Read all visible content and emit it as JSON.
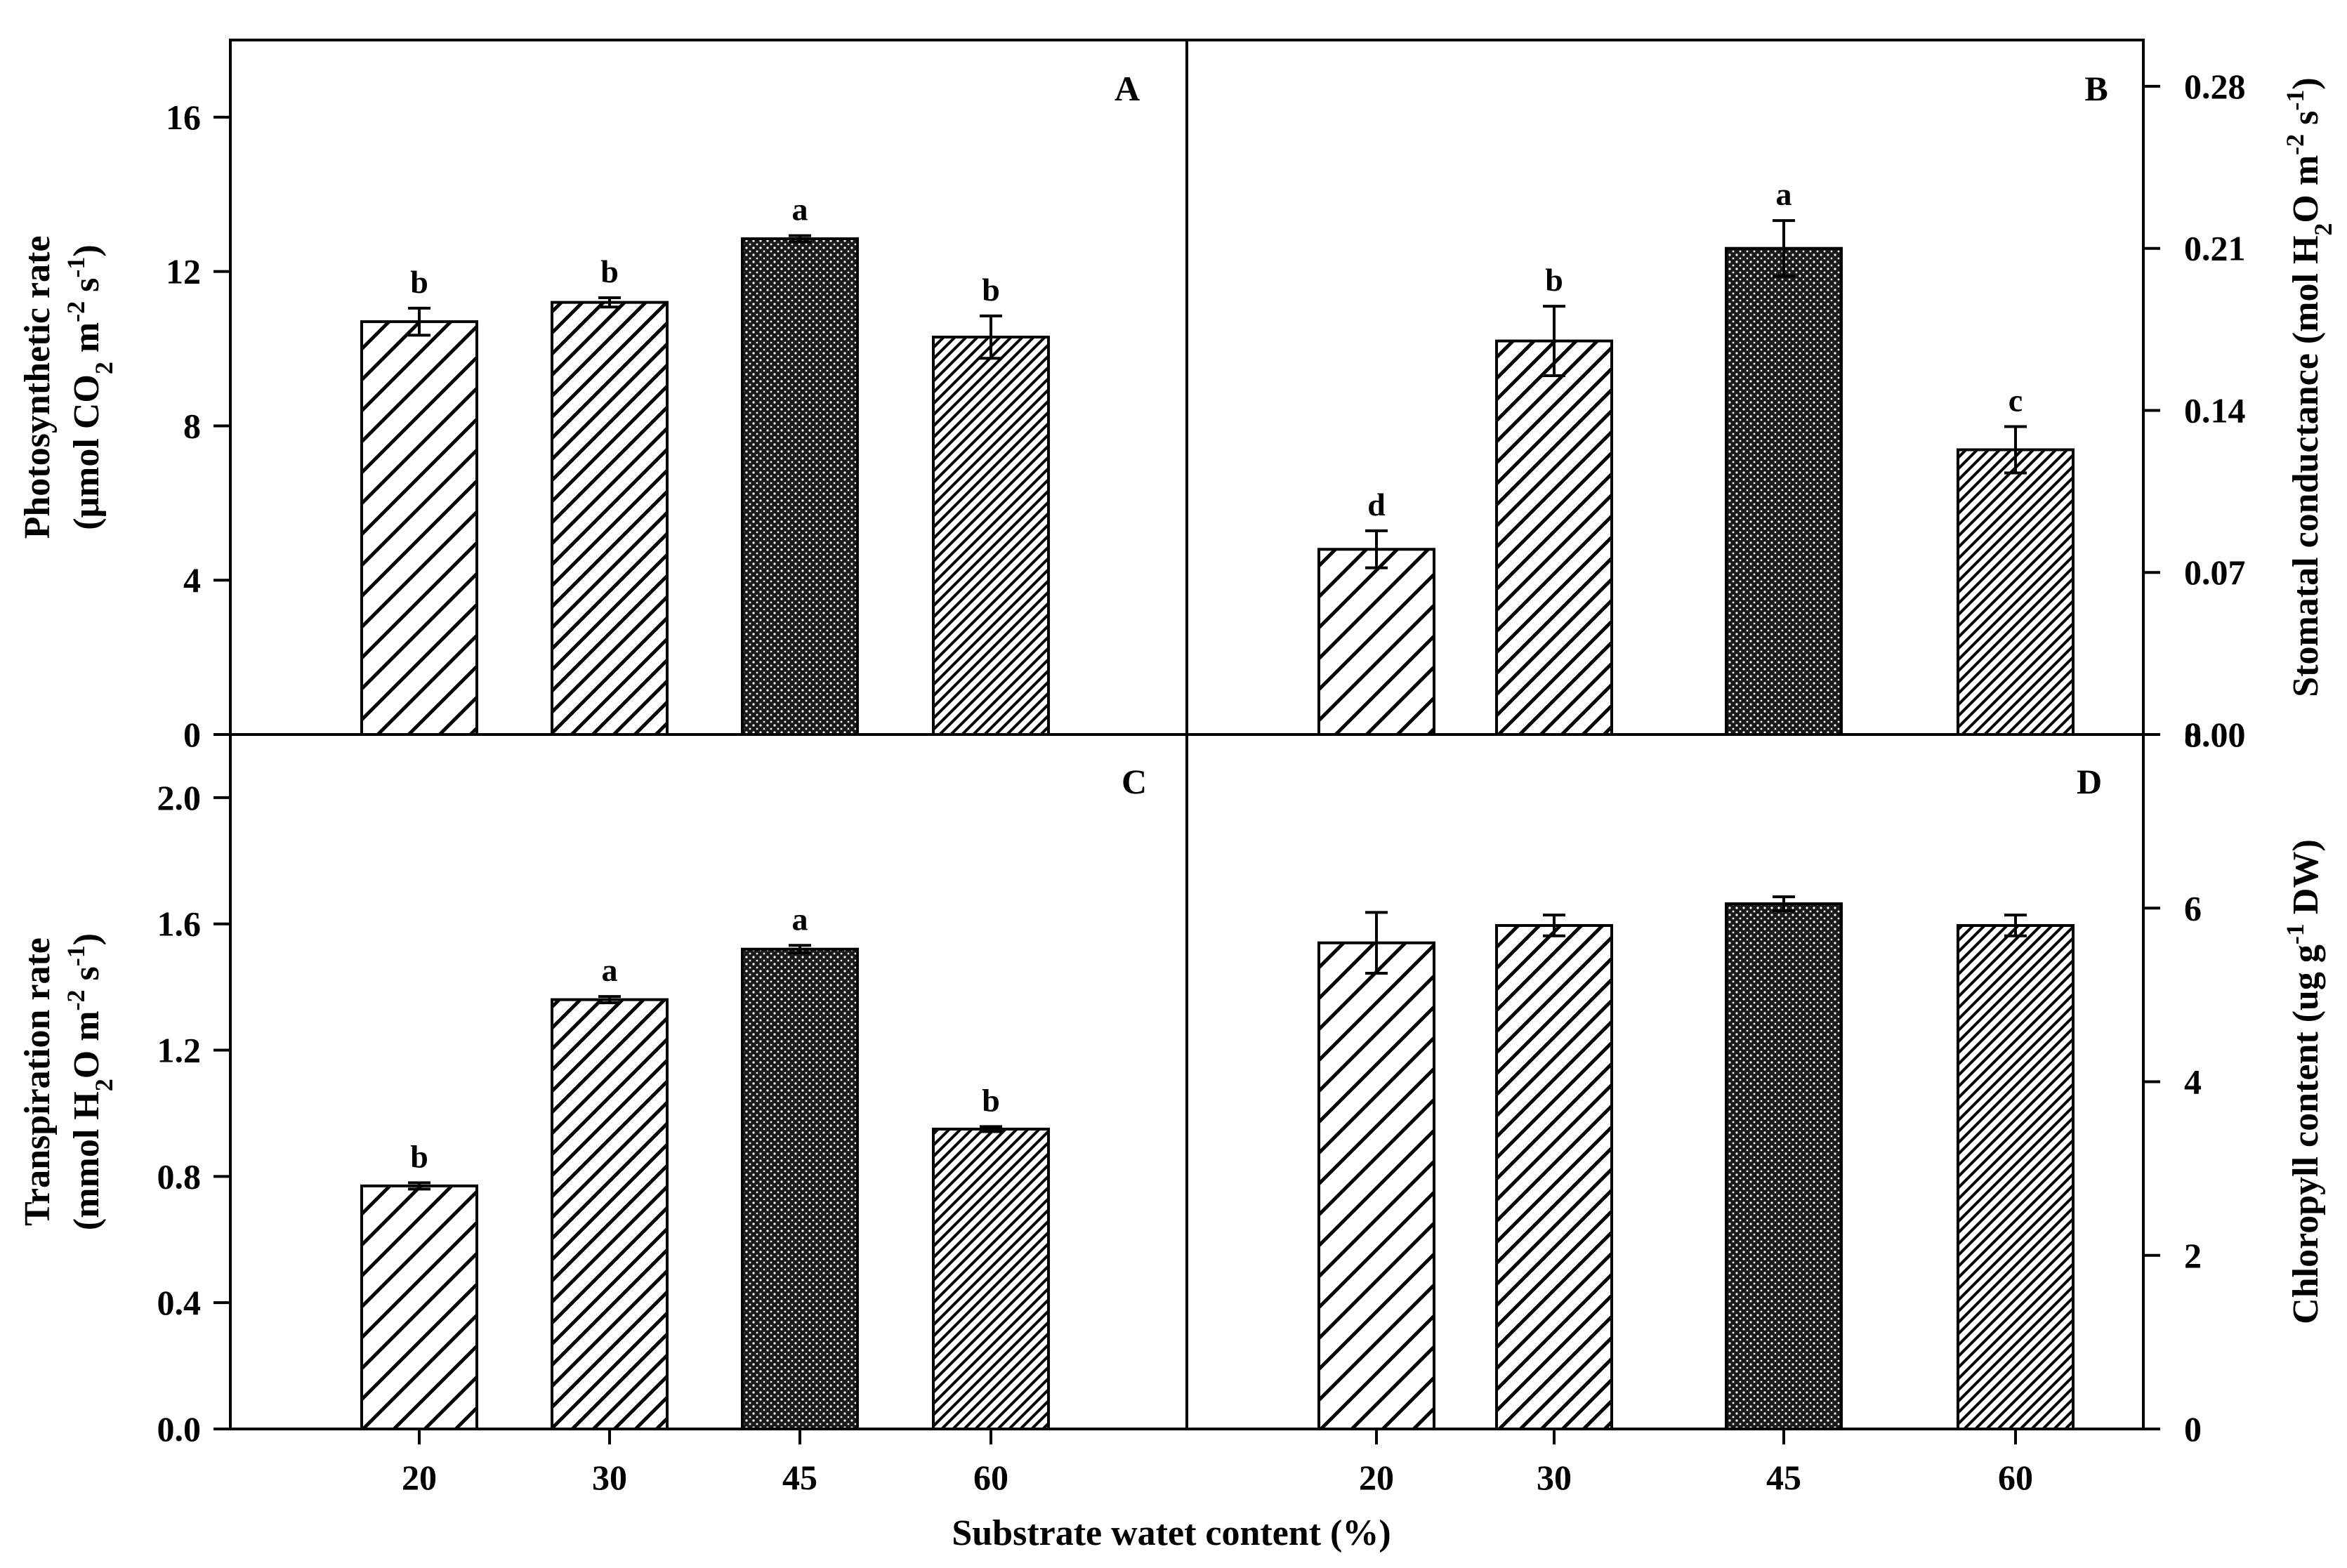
{
  "figure": {
    "xlabel": "Substrate watet content (%)"
  },
  "chart_data": [
    {
      "type": "bar",
      "panel": "A",
      "categories": [
        "20",
        "30",
        "45",
        "60"
      ],
      "values": [
        10.7,
        11.2,
        12.85,
        10.3
      ],
      "errors": [
        0.35,
        0.12,
        0.08,
        0.55
      ],
      "significance": [
        "b",
        "b",
        "a",
        "b"
      ],
      "patterns": [
        "hatch-wide",
        "hatch-medium",
        "dots",
        "hatch-fine"
      ],
      "ylabel_lines": [
        "Photosynthetic rate",
        "(μmol CO2 m-2 s-1)"
      ],
      "ylim": [
        0,
        18
      ],
      "yticks": [
        0,
        4,
        8,
        12,
        16
      ],
      "ytick_labels": [
        "0",
        "4",
        "8",
        "12",
        "16"
      ],
      "axis_side": "left"
    },
    {
      "type": "bar",
      "panel": "B",
      "categories": [
        "20",
        "30",
        "45",
        "60"
      ],
      "values": [
        0.08,
        0.17,
        0.21,
        0.123
      ],
      "errors": [
        0.008,
        0.015,
        0.012,
        0.01
      ],
      "significance": [
        "d",
        "b",
        "a",
        "c"
      ],
      "patterns": [
        "hatch-wide",
        "hatch-medium",
        "dots",
        "hatch-fine"
      ],
      "ylabel_lines": [
        "Stomatal conductance (mol H2O m-2 s-1)"
      ],
      "ylim": [
        0,
        0.3
      ],
      "yticks": [
        0,
        0.07,
        0.14,
        0.21,
        0.28
      ],
      "ytick_labels": [
        "0.00",
        "0.07",
        "0.14",
        "0.21",
        "0.28"
      ],
      "axis_side": "right"
    },
    {
      "type": "bar",
      "panel": "C",
      "categories": [
        "20",
        "30",
        "45",
        "60"
      ],
      "values": [
        0.77,
        1.36,
        1.52,
        0.95
      ],
      "errors": [
        0.01,
        0.01,
        0.012,
        0.008
      ],
      "significance": [
        "b",
        "a",
        "a",
        "b"
      ],
      "patterns": [
        "hatch-wide",
        "hatch-medium",
        "dots",
        "hatch-fine"
      ],
      "ylabel_lines": [
        "Transpiration rate",
        "(mmol H2O m-2 s-1)"
      ],
      "ylim": [
        0,
        2.2
      ],
      "yticks": [
        0,
        0.4,
        0.8,
        1.2,
        1.6,
        2.0
      ],
      "ytick_labels": [
        "0.0",
        "0.4",
        "0.8",
        "1.2",
        "1.6",
        "2.0"
      ],
      "axis_side": "left",
      "show_xticks": true
    },
    {
      "type": "bar",
      "panel": "D",
      "categories": [
        "20",
        "30",
        "45",
        "60"
      ],
      "values": [
        5.6,
        5.8,
        6.05,
        5.8
      ],
      "errors": [
        0.35,
        0.12,
        0.08,
        0.12
      ],
      "significance": [
        "",
        "",
        "",
        ""
      ],
      "patterns": [
        "hatch-wide",
        "hatch-medium",
        "dots",
        "hatch-fine"
      ],
      "ylabel_lines": [
        "Chloropyll content (ug g-1 DW)"
      ],
      "ylim": [
        0,
        8
      ],
      "yticks": [
        0,
        2,
        4,
        6,
        8
      ],
      "ytick_labels": [
        "0",
        "2",
        "4",
        "6",
        "8"
      ],
      "axis_side": "right",
      "show_xticks": true
    }
  ]
}
